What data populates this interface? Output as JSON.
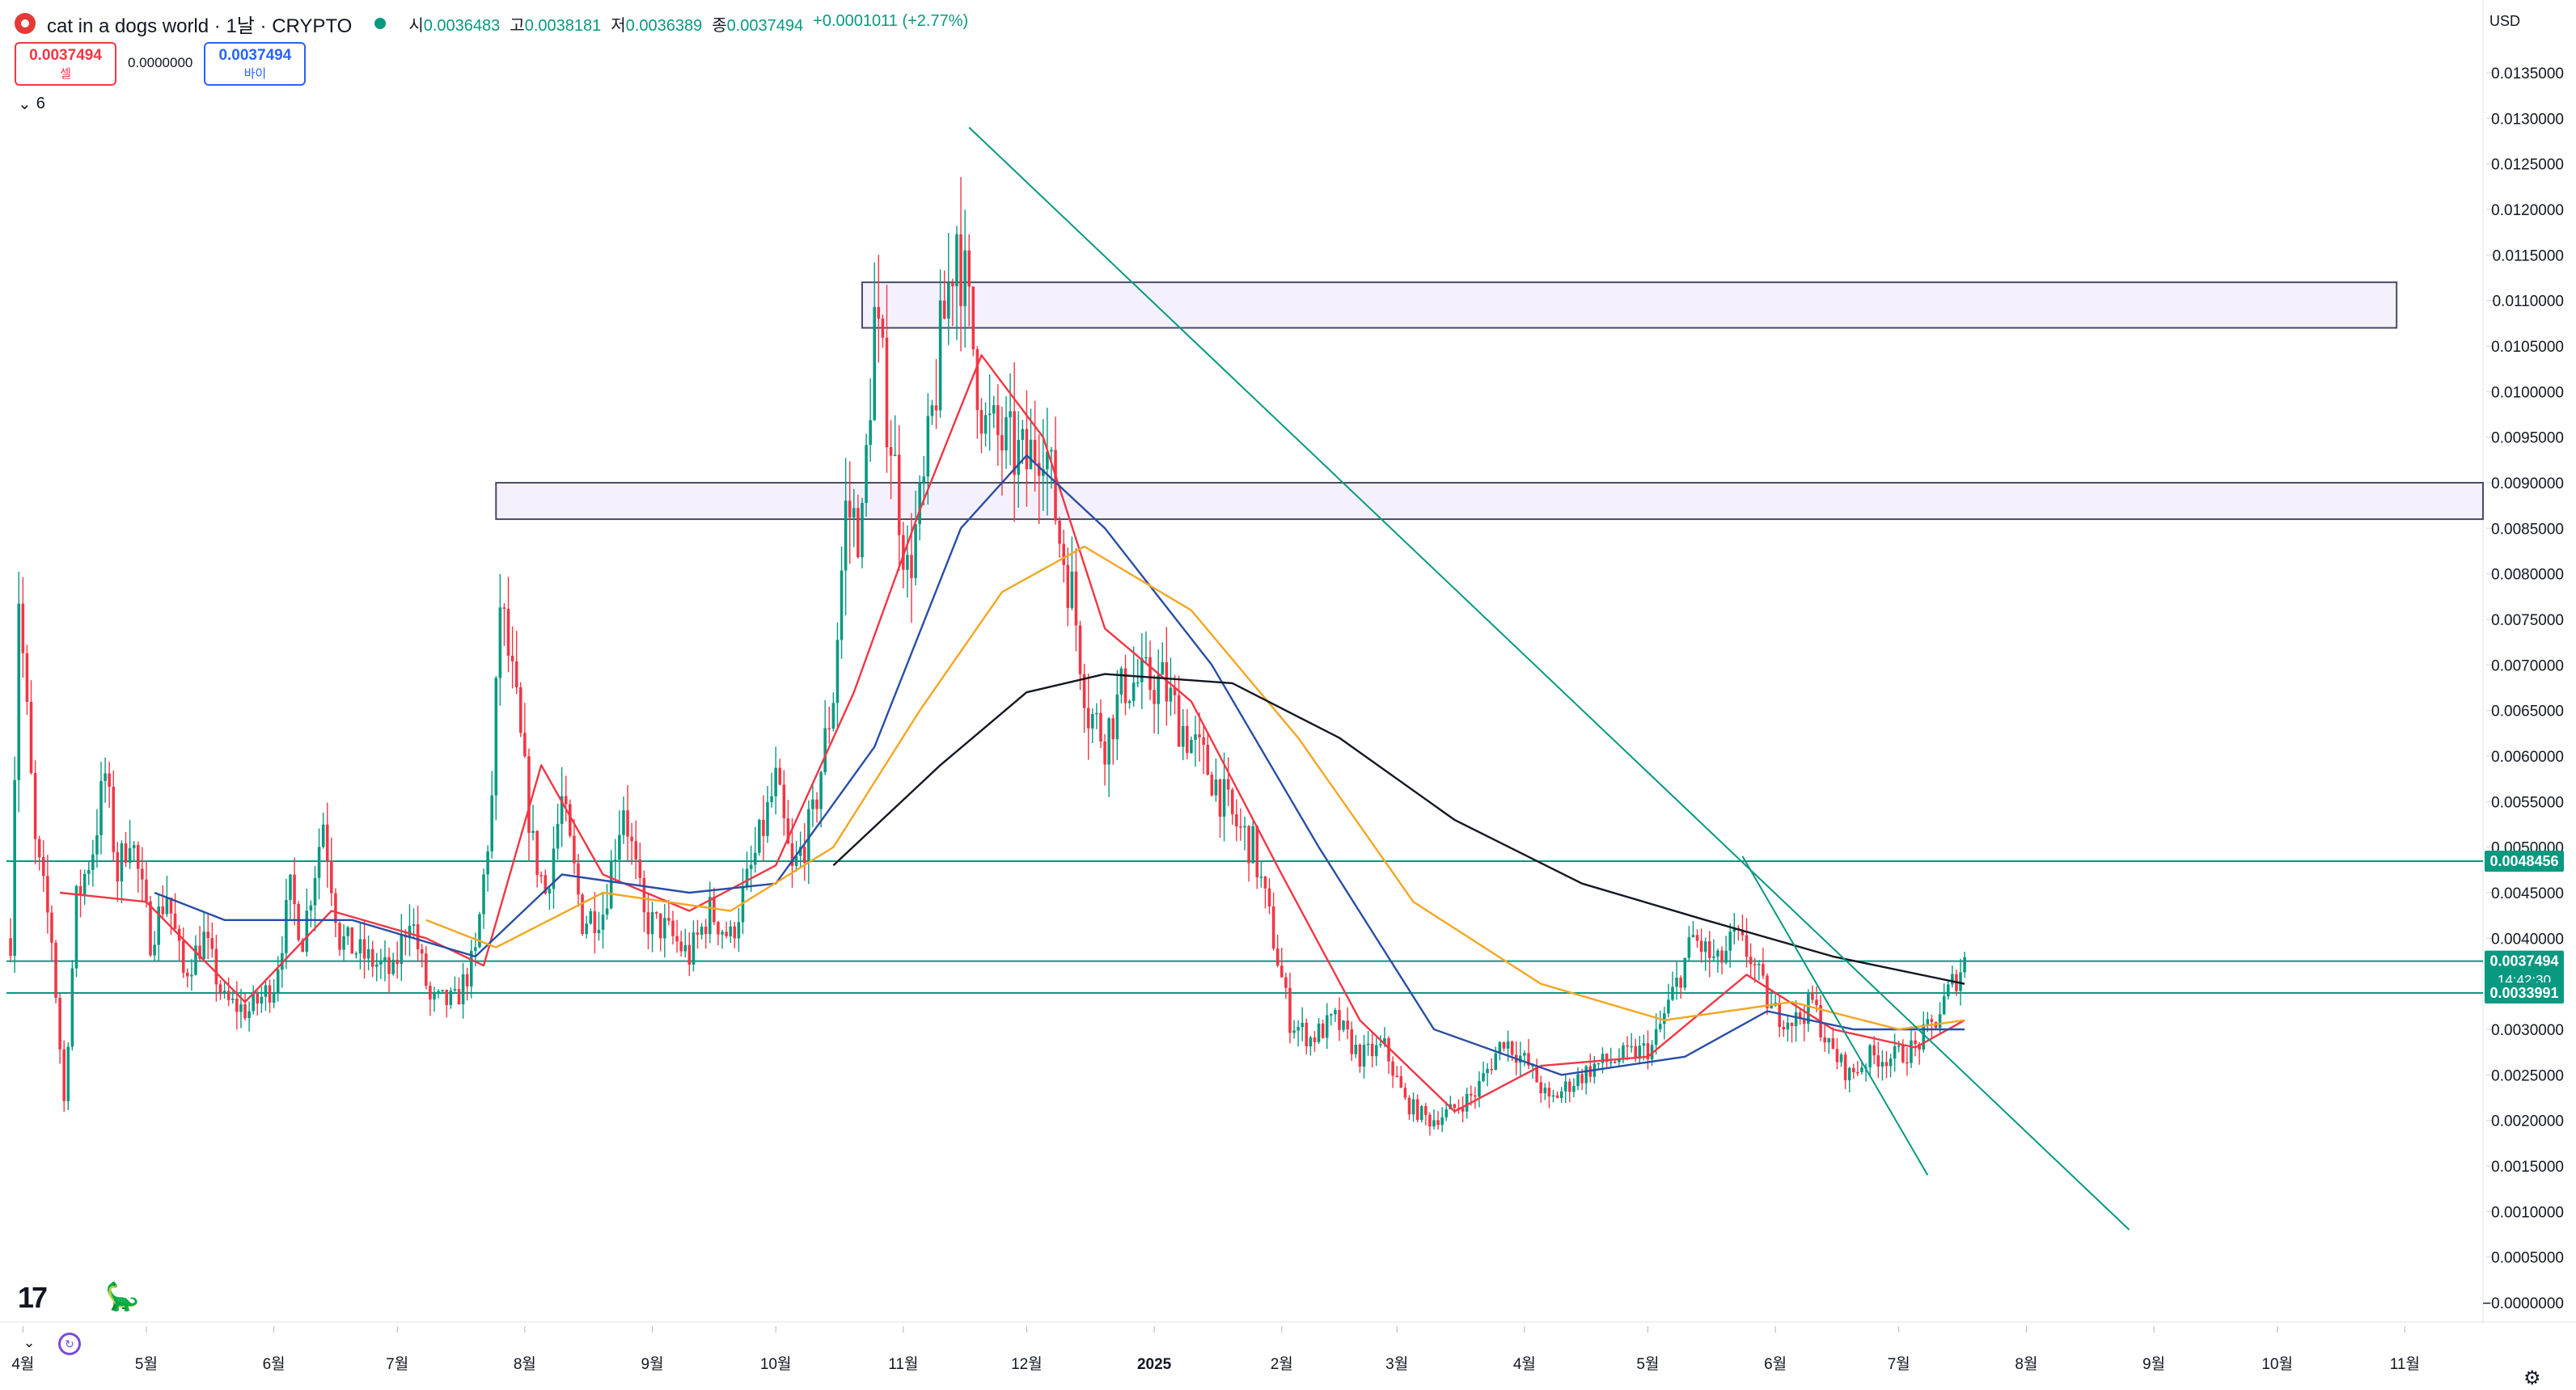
{
  "header": {
    "symbol_title": "cat in a dogs world · 1날 · CRYPTO",
    "ohlc": [
      {
        "label": "시",
        "value": "0.0036483"
      },
      {
        "label": "고",
        "value": "0.0038181"
      },
      {
        "label": "저",
        "value": "0.0036389"
      },
      {
        "label": "종",
        "value": "0.0037494"
      }
    ],
    "change": "+0.0001011 (+2.77%)",
    "sell_price": "0.0037494",
    "sell_label": "셀",
    "spread": "0.0000000",
    "buy_price": "0.0037494",
    "buy_label": "바이",
    "indicators_count": "6",
    "currency": "USD"
  },
  "colors": {
    "up": "#089981",
    "down": "#f23645",
    "ma_red": "#f23645",
    "ma_blue": "#2a4ea6",
    "ma_orange": "#f5a623",
    "ma_black": "#131722",
    "trendline": "#089981",
    "zone_fill": "#ede7fb",
    "zone_border": "#4a4a6a",
    "price_label_bg": "#089981"
  },
  "icons": {
    "logo": "tradingview-logo-icon",
    "dino": "dino-icon",
    "chevron": "chevron-down-icon",
    "reset": "reset-icon",
    "settings": "gear-icon"
  },
  "chart_data": {
    "type": "candlestick",
    "ylim": [
      0.0,
      0.0135
    ],
    "y_ticks": [
      "0.0135000",
      "0.0130000",
      "0.0125000",
      "0.0120000",
      "0.0115000",
      "0.0110000",
      "0.0105000",
      "0.0100000",
      "0.0095000",
      "0.0090000",
      "0.0085000",
      "0.0080000",
      "0.0075000",
      "0.0070000",
      "0.0065000",
      "0.0060000",
      "0.0055000",
      "0.0050000",
      "0.0045000",
      "0.0040000",
      "0.0035000",
      "0.0030000",
      "0.0025000",
      "0.0020000",
      "0.0015000",
      "0.0010000",
      "0.0005000",
      "−0.0000000"
    ],
    "x_start": "2024-03-28",
    "x_end": "2025-11-20",
    "x_ticks": [
      {
        "date": "2024-04-01",
        "label": "4월"
      },
      {
        "date": "2024-05-01",
        "label": "5월"
      },
      {
        "date": "2024-06-01",
        "label": "6월"
      },
      {
        "date": "2024-07-01",
        "label": "7월"
      },
      {
        "date": "2024-08-01",
        "label": "8월"
      },
      {
        "date": "2024-09-01",
        "label": "9월"
      },
      {
        "date": "2024-10-01",
        "label": "10월"
      },
      {
        "date": "2024-11-01",
        "label": "11월"
      },
      {
        "date": "2024-12-01",
        "label": "12월"
      },
      {
        "date": "2025-01-01",
        "label": "2025"
      },
      {
        "date": "2025-02-01",
        "label": "2월"
      },
      {
        "date": "2025-03-01",
        "label": "3월"
      },
      {
        "date": "2025-04-01",
        "label": "4월"
      },
      {
        "date": "2025-05-01",
        "label": "5월"
      },
      {
        "date": "2025-06-01",
        "label": "6월"
      },
      {
        "date": "2025-07-01",
        "label": "7월"
      },
      {
        "date": "2025-08-01",
        "label": "8월"
      },
      {
        "date": "2025-09-01",
        "label": "9월"
      },
      {
        "date": "2025-10-01",
        "label": "10월"
      },
      {
        "date": "2025-11-01",
        "label": "11월"
      }
    ],
    "price_path": [
      [
        "2024-03-29",
        0.004
      ],
      [
        "2024-03-31",
        0.0078
      ],
      [
        "2024-04-04",
        0.005
      ],
      [
        "2024-04-08",
        0.004
      ],
      [
        "2024-04-11",
        0.0022
      ],
      [
        "2024-04-14",
        0.0044
      ],
      [
        "2024-04-18",
        0.005
      ],
      [
        "2024-04-21",
        0.0058
      ],
      [
        "2024-04-24",
        0.0047
      ],
      [
        "2024-04-27",
        0.0052
      ],
      [
        "2024-05-02",
        0.004
      ],
      [
        "2024-05-06",
        0.0045
      ],
      [
        "2024-05-10",
        0.0036
      ],
      [
        "2024-05-15",
        0.004
      ],
      [
        "2024-05-20",
        0.0033
      ],
      [
        "2024-05-26",
        0.0032
      ],
      [
        "2024-06-01",
        0.0035
      ],
      [
        "2024-06-05",
        0.0045
      ],
      [
        "2024-06-08",
        0.004
      ],
      [
        "2024-06-13",
        0.0053
      ],
      [
        "2024-06-17",
        0.004
      ],
      [
        "2024-06-23",
        0.0038
      ],
      [
        "2024-06-30",
        0.0036
      ],
      [
        "2024-07-04",
        0.0043
      ],
      [
        "2024-07-09",
        0.0033
      ],
      [
        "2024-07-15",
        0.0033
      ],
      [
        "2024-07-20",
        0.0038
      ],
      [
        "2024-07-24",
        0.0055
      ],
      [
        "2024-07-26",
        0.0077
      ],
      [
        "2024-07-30",
        0.0065
      ],
      [
        "2024-08-03",
        0.005
      ],
      [
        "2024-08-06",
        0.0045
      ],
      [
        "2024-08-10",
        0.0055
      ],
      [
        "2024-08-15",
        0.0042
      ],
      [
        "2024-08-20",
        0.0043
      ],
      [
        "2024-08-25",
        0.0055
      ],
      [
        "2024-08-30",
        0.0042
      ],
      [
        "2024-09-04",
        0.0041
      ],
      [
        "2024-09-10",
        0.0038
      ],
      [
        "2024-09-15",
        0.0043
      ],
      [
        "2024-09-20",
        0.004
      ],
      [
        "2024-09-26",
        0.0049
      ],
      [
        "2024-10-01",
        0.0057
      ],
      [
        "2024-10-05",
        0.0047
      ],
      [
        "2024-10-10",
        0.0053
      ],
      [
        "2024-10-15",
        0.0067
      ],
      [
        "2024-10-18",
        0.0087
      ],
      [
        "2024-10-22",
        0.0085
      ],
      [
        "2024-10-25",
        0.0108
      ],
      [
        "2024-10-29",
        0.0095
      ],
      [
        "2024-11-02",
        0.008
      ],
      [
        "2024-11-06",
        0.0089
      ],
      [
        "2024-11-10",
        0.0105
      ],
      [
        "2024-11-14",
        0.0118
      ],
      [
        "2024-11-17",
        0.0108
      ],
      [
        "2024-11-21",
        0.0096
      ],
      [
        "2024-11-26",
        0.0094
      ],
      [
        "2024-12-01",
        0.0092
      ],
      [
        "2024-12-05",
        0.0096
      ],
      [
        "2024-12-09",
        0.0084
      ],
      [
        "2024-12-12",
        0.0078
      ],
      [
        "2024-12-16",
        0.0065
      ],
      [
        "2024-12-20",
        0.0062
      ],
      [
        "2024-12-25",
        0.0068
      ],
      [
        "2024-12-30",
        0.0068
      ],
      [
        "2025-01-03",
        0.0068
      ],
      [
        "2025-01-07",
        0.0064
      ],
      [
        "2025-01-12",
        0.006
      ],
      [
        "2025-01-15",
        0.0058
      ],
      [
        "2025-01-20",
        0.0053
      ],
      [
        "2025-01-25",
        0.005
      ],
      [
        "2025-01-30",
        0.004
      ],
      [
        "2025-02-03",
        0.0031
      ],
      [
        "2025-02-08",
        0.0029
      ],
      [
        "2025-02-14",
        0.0031
      ],
      [
        "2025-02-20",
        0.0027
      ],
      [
        "2025-02-26",
        0.0028
      ],
      [
        "2025-03-03",
        0.0022
      ],
      [
        "2025-03-09",
        0.002
      ],
      [
        "2025-03-14",
        0.0021
      ],
      [
        "2025-03-20",
        0.0023
      ],
      [
        "2025-03-27",
        0.0029
      ],
      [
        "2025-04-02",
        0.0026
      ],
      [
        "2025-04-07",
        0.0022
      ],
      [
        "2025-04-12",
        0.0024
      ],
      [
        "2025-04-18",
        0.0026
      ],
      [
        "2025-04-25",
        0.0027
      ],
      [
        "2025-05-02",
        0.0028
      ],
      [
        "2025-05-08",
        0.0035
      ],
      [
        "2025-05-12",
        0.004
      ],
      [
        "2025-05-18",
        0.0037
      ],
      [
        "2025-05-22",
        0.004
      ],
      [
        "2025-05-26",
        0.0038
      ],
      [
        "2025-05-31",
        0.0032
      ],
      [
        "2025-06-06",
        0.0031
      ],
      [
        "2025-06-10",
        0.0033
      ],
      [
        "2025-06-14",
        0.0028
      ],
      [
        "2025-06-19",
        0.0025
      ],
      [
        "2025-06-24",
        0.0027
      ],
      [
        "2025-06-30",
        0.0027
      ],
      [
        "2025-07-05",
        0.0028
      ],
      [
        "2025-07-10",
        0.0031
      ],
      [
        "2025-07-14",
        0.0035
      ],
      [
        "2025-07-17",
        0.0037494
      ]
    ],
    "moving_averages": [
      {
        "color": "ma_red",
        "points": [
          [
            "2024-04-10",
            0.0045
          ],
          [
            "2024-05-01",
            0.0044
          ],
          [
            "2024-05-25",
            0.0033
          ],
          [
            "2024-06-15",
            0.0043
          ],
          [
            "2024-07-08",
            0.004
          ],
          [
            "2024-07-22",
            0.0037
          ],
          [
            "2024-08-05",
            0.0059
          ],
          [
            "2024-08-20",
            0.0047
          ],
          [
            "2024-09-10",
            0.0043
          ],
          [
            "2024-10-01",
            0.0048
          ],
          [
            "2024-10-20",
            0.0067
          ],
          [
            "2024-11-05",
            0.0087
          ],
          [
            "2024-11-20",
            0.0104
          ],
          [
            "2024-12-05",
            0.0095
          ],
          [
            "2024-12-20",
            0.0074
          ],
          [
            "2025-01-10",
            0.0066
          ],
          [
            "2025-02-01",
            0.0047
          ],
          [
            "2025-02-20",
            0.0031
          ],
          [
            "2025-03-15",
            0.0021
          ],
          [
            "2025-04-05",
            0.0026
          ],
          [
            "2025-05-01",
            0.0027
          ],
          [
            "2025-05-25",
            0.0036
          ],
          [
            "2025-06-15",
            0.003
          ],
          [
            "2025-07-05",
            0.0028
          ],
          [
            "2025-07-17",
            0.0031
          ]
        ]
      },
      {
        "color": "ma_blue",
        "points": [
          [
            "2024-05-03",
            0.0045
          ],
          [
            "2024-05-20",
            0.0042
          ],
          [
            "2024-06-20",
            0.0042
          ],
          [
            "2024-07-20",
            0.0038
          ],
          [
            "2024-08-10",
            0.0047
          ],
          [
            "2024-09-10",
            0.0045
          ],
          [
            "2024-10-01",
            0.0046
          ],
          [
            "2024-10-25",
            0.0061
          ],
          [
            "2024-11-15",
            0.0085
          ],
          [
            "2024-12-01",
            0.0093
          ],
          [
            "2024-12-20",
            0.0085
          ],
          [
            "2025-01-15",
            0.007
          ],
          [
            "2025-02-10",
            0.005
          ],
          [
            "2025-03-10",
            0.003
          ],
          [
            "2025-04-10",
            0.0025
          ],
          [
            "2025-05-10",
            0.0027
          ],
          [
            "2025-05-30",
            0.0032
          ],
          [
            "2025-06-20",
            0.003
          ],
          [
            "2025-07-17",
            0.003
          ]
        ]
      },
      {
        "color": "ma_orange",
        "points": [
          [
            "2024-07-08",
            0.0042
          ],
          [
            "2024-07-25",
            0.0039
          ],
          [
            "2024-08-20",
            0.0045
          ],
          [
            "2024-09-20",
            0.0043
          ],
          [
            "2024-10-15",
            0.005
          ],
          [
            "2024-11-05",
            0.0065
          ],
          [
            "2024-11-25",
            0.0078
          ],
          [
            "2024-12-15",
            0.0083
          ],
          [
            "2025-01-10",
            0.0076
          ],
          [
            "2025-02-05",
            0.0062
          ],
          [
            "2025-03-05",
            0.0044
          ],
          [
            "2025-04-05",
            0.0035
          ],
          [
            "2025-05-05",
            0.0031
          ],
          [
            "2025-06-05",
            0.0033
          ],
          [
            "2025-07-01",
            0.003
          ],
          [
            "2025-07-17",
            0.0031
          ]
        ]
      },
      {
        "color": "ma_black",
        "points": [
          [
            "2024-10-15",
            0.0048
          ],
          [
            "2024-11-10",
            0.0059
          ],
          [
            "2024-12-01",
            0.0067
          ],
          [
            "2024-12-20",
            0.0069
          ],
          [
            "2025-01-20",
            0.0068
          ],
          [
            "2025-02-15",
            0.0062
          ],
          [
            "2025-03-15",
            0.0053
          ],
          [
            "2025-04-15",
            0.0046
          ],
          [
            "2025-05-15",
            0.0042
          ],
          [
            "2025-06-15",
            0.0038
          ],
          [
            "2025-07-17",
            0.0035
          ]
        ]
      }
    ],
    "trendlines": [
      {
        "from": [
          "2024-11-17",
          0.0129
        ],
        "to": [
          "2025-08-26",
          0.0008
        ]
      },
      {
        "from": [
          "2025-05-24",
          0.0049
        ],
        "to": [
          "2025-07-08",
          0.0014
        ]
      }
    ],
    "zones": [
      {
        "from": "2024-10-22",
        "to": "2025-10-30",
        "low": 0.0107,
        "high": 0.0112
      },
      {
        "from": "2024-07-25",
        "to": "2025-11-20",
        "low": 0.0086,
        "high": 0.009
      }
    ],
    "horizontal_lines": [
      0.0048456,
      0.0037494,
      0.0033991
    ],
    "price_labels": [
      {
        "value": 0.0048456,
        "text": "0.0048456"
      },
      {
        "value": 0.0037494,
        "text": "0.0037494",
        "sub": "14:42:30"
      },
      {
        "value": 0.0033991,
        "text": "0.0033991"
      }
    ]
  }
}
